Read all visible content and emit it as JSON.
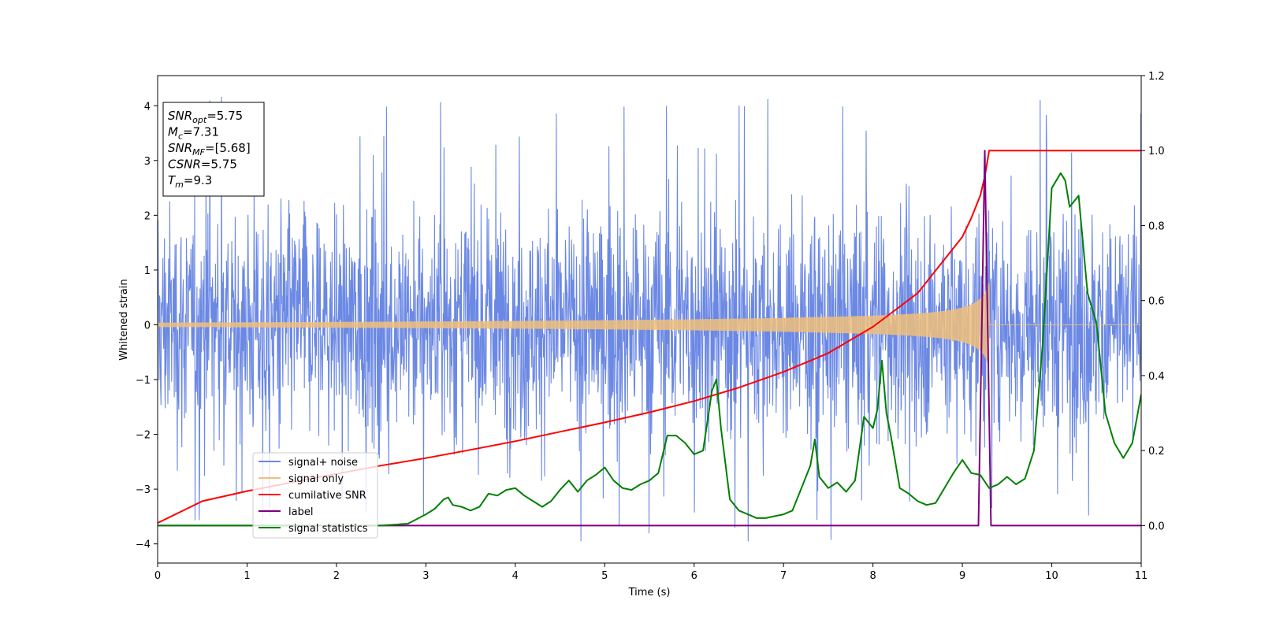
{
  "chart_data": {
    "type": "line",
    "xlabel": "Time (s)",
    "ylabel": "Whitened strain",
    "xlim": [
      0,
      11
    ],
    "ylim_left": [
      -4.35,
      4.55
    ],
    "ylim_right": [
      -0.1,
      1.2
    ],
    "x_ticks": [
      0,
      1,
      2,
      3,
      4,
      5,
      6,
      7,
      8,
      9,
      10,
      11
    ],
    "y_ticks_left": [
      -4,
      -3,
      -2,
      -1,
      0,
      1,
      2,
      3,
      4
    ],
    "y_ticks_right": [
      "0.0",
      "0.2",
      "0.4",
      "0.6",
      "0.8",
      "1.0",
      "1.2"
    ],
    "grid": false,
    "legend_position": "lower-left",
    "annotation": [
      {
        "base": "SNR",
        "sub": "opt",
        "rest": "=5.75"
      },
      {
        "base": "M",
        "sub": "c",
        "rest": "=7.31"
      },
      {
        "base": "SNR",
        "sub": "MF",
        "rest": "=[5.68]"
      },
      {
        "base": "CSNR",
        "sub": "",
        "rest": "=5.75"
      },
      {
        "base": "T",
        "sub": "m",
        "rest": "=9.3"
      }
    ],
    "series": [
      {
        "name": "signal+ noise",
        "color": "#6b88e4",
        "axis": "left",
        "kind": "noise",
        "noise_std": 1.05,
        "noise_peak": 4.2,
        "merger_time": 9.3
      },
      {
        "name": "signal only",
        "color": "#f0bf7a",
        "axis": "left",
        "kind": "chirp",
        "merger_time": 9.3,
        "amp_start": 0.03,
        "amp_peak": 0.8
      },
      {
        "name": "cumilative SNR",
        "color": "#ff0000",
        "axis": "right",
        "x": [
          0,
          0.5,
          1,
          1.5,
          2,
          2.5,
          3,
          3.5,
          4,
          4.5,
          5,
          5.5,
          6,
          6.5,
          7,
          7.5,
          8,
          8.5,
          9,
          9.1,
          9.2,
          9.25,
          9.3,
          11
        ],
        "values": [
          0.007,
          0.065,
          0.092,
          0.115,
          0.138,
          0.16,
          0.18,
          0.202,
          0.225,
          0.25,
          0.275,
          0.302,
          0.332,
          0.368,
          0.41,
          0.46,
          0.53,
          0.62,
          0.77,
          0.82,
          0.88,
          0.93,
          1.0,
          1.0
        ]
      },
      {
        "name": "label",
        "color": "#800080",
        "axis": "right",
        "x": [
          0,
          9.18,
          9.25,
          9.32,
          11
        ],
        "values": [
          0,
          0,
          1.0,
          0,
          0
        ]
      },
      {
        "name": "signal statistics",
        "color": "#008000",
        "axis": "right",
        "x": [
          0,
          2.5,
          2.8,
          3.0,
          3.1,
          3.2,
          3.25,
          3.3,
          3.4,
          3.5,
          3.6,
          3.7,
          3.8,
          3.9,
          4.0,
          4.1,
          4.2,
          4.3,
          4.4,
          4.5,
          4.6,
          4.7,
          4.8,
          4.9,
          5.0,
          5.1,
          5.2,
          5.3,
          5.4,
          5.5,
          5.6,
          5.7,
          5.8,
          5.9,
          6.0,
          6.1,
          6.2,
          6.25,
          6.3,
          6.4,
          6.5,
          6.6,
          6.7,
          6.8,
          6.9,
          7.0,
          7.1,
          7.2,
          7.3,
          7.35,
          7.4,
          7.5,
          7.6,
          7.7,
          7.8,
          7.9,
          8.0,
          8.05,
          8.1,
          8.15,
          8.2,
          8.3,
          8.4,
          8.5,
          8.6,
          8.7,
          8.8,
          8.9,
          9.0,
          9.1,
          9.2,
          9.3,
          9.4,
          9.5,
          9.6,
          9.7,
          9.8,
          9.9,
          10.0,
          10.1,
          10.15,
          10.2,
          10.3,
          10.4,
          10.5,
          10.6,
          10.7,
          10.8,
          10.9,
          11.0
        ],
        "values": [
          0.0,
          0.0,
          0.005,
          0.03,
          0.045,
          0.07,
          0.075,
          0.055,
          0.05,
          0.04,
          0.05,
          0.085,
          0.08,
          0.095,
          0.1,
          0.08,
          0.065,
          0.05,
          0.065,
          0.095,
          0.12,
          0.09,
          0.12,
          0.135,
          0.155,
          0.12,
          0.1,
          0.095,
          0.11,
          0.12,
          0.14,
          0.24,
          0.24,
          0.22,
          0.19,
          0.2,
          0.36,
          0.39,
          0.26,
          0.07,
          0.04,
          0.03,
          0.02,
          0.02,
          0.025,
          0.03,
          0.04,
          0.1,
          0.16,
          0.23,
          0.13,
          0.1,
          0.115,
          0.09,
          0.12,
          0.29,
          0.26,
          0.31,
          0.44,
          0.3,
          0.24,
          0.1,
          0.085,
          0.065,
          0.055,
          0.06,
          0.1,
          0.14,
          0.175,
          0.14,
          0.135,
          0.1,
          0.11,
          0.13,
          0.11,
          0.125,
          0.2,
          0.49,
          0.9,
          0.94,
          0.92,
          0.85,
          0.88,
          0.62,
          0.54,
          0.3,
          0.22,
          0.18,
          0.22,
          0.35
        ]
      }
    ]
  }
}
